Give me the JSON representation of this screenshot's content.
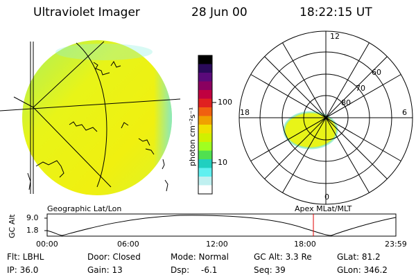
{
  "header": {
    "instrument": "Ultraviolet Imager",
    "date": "28 Jun 00",
    "time": "18:22:15 UT"
  },
  "colorbar": {
    "unit_label": "photon cm⁻²s⁻¹",
    "ticks": [
      "100",
      "10"
    ],
    "colors": [
      "#000000",
      "#2a0a5a",
      "#5a0a7a",
      "#8a0060",
      "#c00040",
      "#e02020",
      "#f06010",
      "#f0a000",
      "#f0e000",
      "#d0f000",
      "#a0ff20",
      "#50e050",
      "#20d0c0",
      "#60f0f0",
      "#c0f0f0",
      "#ffffff"
    ]
  },
  "polar_plot": {
    "mlt_labels": {
      "top": "12",
      "left": "18",
      "right": "6",
      "bottom": "0"
    },
    "lat_labels": [
      "60",
      "70",
      "80"
    ]
  },
  "timeline": {
    "label_left": "Geographic Lat/Lon",
    "label_right": "Apex MLat/MLT",
    "axis_title": "GC Alt",
    "y_ticks": [
      "9.0",
      "1.8"
    ],
    "x_ticks": [
      "00:00",
      "06:00",
      "12:00",
      "18:00",
      "23:59"
    ],
    "marker_color": "#e00000"
  },
  "info": {
    "flt": "Flt: LBHL",
    "ip": "IP: 36.0",
    "door": "Door: Closed",
    "gain": "Gain: 13",
    "mode": "Mode: Normal",
    "dsp_label": "Dsp:",
    "dsp_value": "-6.1",
    "gcalt": "GC Alt: 3.3 Re",
    "seq": "Seq: 39",
    "glat": "GLat: 81.2",
    "glon": "GLon: 346.2"
  }
}
